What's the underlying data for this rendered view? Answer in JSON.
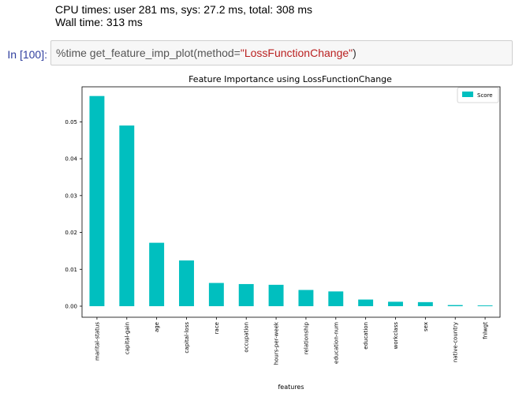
{
  "output_lines": {
    "cpu_times": "CPU times: user 281 ms, sys: 27.2 ms, total: 308 ms",
    "wall_time": "Wall time: 313 ms"
  },
  "cell": {
    "prompt": "In [100]:",
    "code_prefix": "%time get_feature_imp_plot(method=",
    "code_string": "\"LossFunctionChange\"",
    "code_suffix": ")"
  },
  "colors": {
    "bar": "#00bfbf",
    "prompt": "#303f9f",
    "string": "#ba2121"
  },
  "chart_data": {
    "type": "bar",
    "title": "Feature Importance using LossFunctionChange",
    "xlabel": "features",
    "ylabel": "",
    "legend": "top-right",
    "grid": false,
    "ylim": [
      -0.003,
      0.0595
    ],
    "yticks": [
      0.0,
      0.01,
      0.02,
      0.03,
      0.04,
      0.05
    ],
    "ytick_labels": [
      "0.00",
      "0.01",
      "0.02",
      "0.03",
      "0.04",
      "0.05"
    ],
    "categories": [
      "marital-status",
      "capital-gain",
      "age",
      "capital-loss",
      "race",
      "occupation",
      "hours-per-week",
      "relationship",
      "education-num",
      "education",
      "workclass",
      "sex",
      "native-country",
      "fnlwgt"
    ],
    "series": [
      {
        "name": "Score",
        "values": [
          0.057,
          0.049,
          0.0172,
          0.0124,
          0.0063,
          0.006,
          0.0058,
          0.0044,
          0.004,
          0.0018,
          0.0012,
          0.0011,
          0.0003,
          0.0002
        ]
      }
    ]
  }
}
